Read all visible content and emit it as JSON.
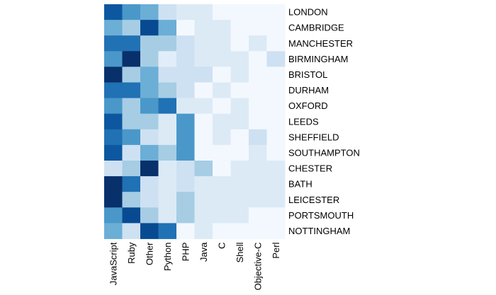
{
  "chart_data": {
    "type": "heatmap",
    "rows": [
      "LONDON",
      "CAMBRIDGE",
      "MANCHESTER",
      "BIRMINGHAM",
      "BRISTOL",
      "DURHAM",
      "OXFORD",
      "LEEDS",
      "SHEFFIELD",
      "SOUTHAMPTON",
      "CHESTER",
      "BATH",
      "LEICESTER",
      "PORTSMOUTH",
      "NOTTINGHAM"
    ],
    "columns": [
      "JavaScript",
      "Ruby",
      "Other",
      "Python",
      "PHP",
      "Java",
      "C",
      "Shell",
      "Objective-C",
      "Perl"
    ],
    "values": [
      [
        0.85,
        0.6,
        0.5,
        0.2,
        0.12,
        0.12,
        0.02,
        0.02,
        0.02,
        0.02
      ],
      [
        0.5,
        0.35,
        0.9,
        0.5,
        0.02,
        0.12,
        0.12,
        0.02,
        0.02,
        0.02
      ],
      [
        0.75,
        0.75,
        0.35,
        0.35,
        0.2,
        0.12,
        0.12,
        0.02,
        0.12,
        0.02
      ],
      [
        0.6,
        1.0,
        0.35,
        0.1,
        0.2,
        0.12,
        0.12,
        0.12,
        0.02,
        0.2
      ],
      [
        1.0,
        0.35,
        0.5,
        0.2,
        0.2,
        0.2,
        0.02,
        0.12,
        0.02,
        0.02
      ],
      [
        0.75,
        0.75,
        0.5,
        0.35,
        0.2,
        0.02,
        0.12,
        0.02,
        0.02,
        0.02
      ],
      [
        0.6,
        0.35,
        0.6,
        0.75,
        0.12,
        0.12,
        0.02,
        0.12,
        0.02,
        0.02
      ],
      [
        0.85,
        0.35,
        0.35,
        0.12,
        0.6,
        0.02,
        0.12,
        0.12,
        0.02,
        0.02
      ],
      [
        0.75,
        0.6,
        0.2,
        0.12,
        0.6,
        0.02,
        0.12,
        0.02,
        0.2,
        0.02
      ],
      [
        0.85,
        0.2,
        0.5,
        0.35,
        0.6,
        0.02,
        0.02,
        0.02,
        0.12,
        0.02
      ],
      [
        0.2,
        0.35,
        1.0,
        0.12,
        0.2,
        0.35,
        0.02,
        0.12,
        0.12,
        0.12
      ],
      [
        1.0,
        0.75,
        0.2,
        0.12,
        0.2,
        0.12,
        0.12,
        0.12,
        0.12,
        0.12
      ],
      [
        1.0,
        0.35,
        0.2,
        0.12,
        0.35,
        0.12,
        0.12,
        0.12,
        0.12,
        0.12
      ],
      [
        0.6,
        0.9,
        0.35,
        0.12,
        0.35,
        0.12,
        0.12,
        0.12,
        0.02,
        0.02
      ],
      [
        0.5,
        0.2,
        0.9,
        0.75,
        0.02,
        0.12,
        0.02,
        0.02,
        0.02,
        0.02
      ]
    ],
    "colormap": [
      "#f7fbff",
      "#dbe9f6",
      "#c6dbef",
      "#9ecae1",
      "#6baed6",
      "#4292c6",
      "#2171b5",
      "#08519c",
      "#08306b"
    ],
    "legend": "none",
    "grid": false
  }
}
